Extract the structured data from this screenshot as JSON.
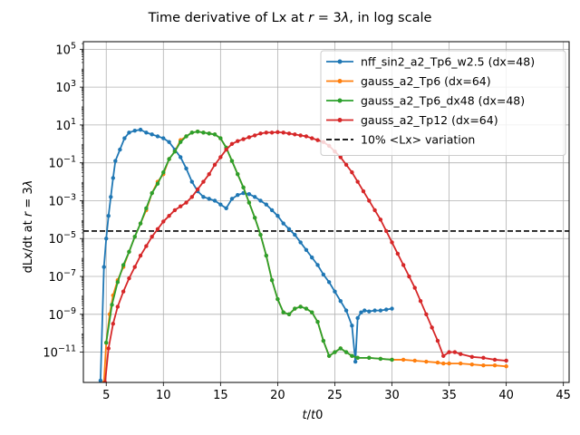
{
  "chart_data": {
    "type": "line",
    "title": "Time derivative of Lx at r = 3λ, in log scale",
    "xlabel": "t/t0",
    "ylabel": "dLx/dt at r = 3λ",
    "xlim": [
      3.0,
      45.5
    ],
    "ylim_log10": [
      -12.6,
      5.4
    ],
    "yscale": "log",
    "grid": true,
    "legend_position": "upper-right",
    "xticks": [
      5,
      10,
      15,
      20,
      25,
      30,
      35,
      40,
      45
    ],
    "yticks_log10": [
      5,
      3,
      1,
      -1,
      -3,
      -5,
      -7,
      -9,
      -11
    ],
    "reference_line": {
      "name": "10% <Lx> variation",
      "y_log10": -4.6,
      "color": "#000000",
      "style": "dashed"
    },
    "series": [
      {
        "name": "nff_sin2_a2_Tp6_w2.5 (dx=48)",
        "color": "#1f77b4",
        "x": [
          4.5,
          4.8,
          5.0,
          5.2,
          5.4,
          5.6,
          5.8,
          6.2,
          6.6,
          7.0,
          7.5,
          8.0,
          8.5,
          9.0,
          9.5,
          10.0,
          10.5,
          11.0,
          11.5,
          12.0,
          12.5,
          13.0,
          13.5,
          14.0,
          14.5,
          15.0,
          15.5,
          16.0,
          16.5,
          17.0,
          17.5,
          18.0,
          18.5,
          19.0,
          19.5,
          20.0,
          20.5,
          21.0,
          21.5,
          22.0,
          22.5,
          23.0,
          23.5,
          24.0,
          24.5,
          25.0,
          25.5,
          26.0,
          26.5,
          26.8,
          27.0,
          27.3,
          27.6,
          28.0,
          28.5,
          29.0,
          29.5,
          30.0
        ],
        "y_log10": [
          -12.5,
          -6.5,
          -5.0,
          -3.8,
          -2.8,
          -1.8,
          -0.9,
          -0.3,
          0.3,
          0.6,
          0.7,
          0.75,
          0.6,
          0.5,
          0.4,
          0.3,
          0.1,
          -0.3,
          -0.7,
          -1.3,
          -2.0,
          -2.5,
          -2.8,
          -2.9,
          -3.0,
          -3.2,
          -3.4,
          -2.9,
          -2.7,
          -2.6,
          -2.65,
          -2.8,
          -3.0,
          -3.2,
          -3.5,
          -3.8,
          -4.2,
          -4.5,
          -4.8,
          -5.2,
          -5.6,
          -6.0,
          -6.4,
          -6.9,
          -7.3,
          -7.8,
          -8.3,
          -8.8,
          -9.6,
          -11.5,
          -9.2,
          -8.9,
          -8.8,
          -8.85,
          -8.8,
          -8.8,
          -8.75,
          -8.7
        ]
      },
      {
        "name": "gauss_a2_Tp6 (dx=64)",
        "color": "#ff7f0e",
        "x": [
          4.8,
          5.0,
          5.3,
          5.6,
          6.0,
          6.5,
          7.0,
          7.5,
          8.0,
          8.5,
          9.0,
          9.5,
          10.0,
          10.5,
          11.0,
          11.5,
          12.0,
          12.5,
          13.0,
          13.5,
          14.0,
          14.5,
          15.0,
          15.5,
          16.0,
          16.5,
          17.0,
          17.5,
          18.0,
          18.5,
          19.0,
          19.5,
          20.0,
          20.5,
          21.0,
          21.5,
          22.0,
          22.5,
          23.0,
          23.5,
          24.0,
          24.5,
          25.0,
          25.5,
          26.0,
          26.5,
          27.0,
          28.0,
          29.0,
          30.0,
          31.0,
          32.0,
          33.0,
          34.0,
          34.5,
          35.0,
          36.0,
          37.0,
          38.0,
          39.0,
          40.0
        ],
        "y_log10": [
          -12.6,
          -10.5,
          -9.0,
          -8.0,
          -7.2,
          -6.5,
          -5.7,
          -4.9,
          -4.2,
          -3.5,
          -2.6,
          -2.0,
          -1.6,
          -0.8,
          -0.4,
          0.2,
          0.4,
          0.6,
          0.65,
          0.6,
          0.55,
          0.5,
          0.3,
          -0.2,
          -0.9,
          -1.6,
          -2.3,
          -3.1,
          -3.9,
          -4.8,
          -5.9,
          -7.2,
          -8.2,
          -8.9,
          -9.0,
          -8.7,
          -8.6,
          -8.7,
          -8.9,
          -9.4,
          -10.4,
          -11.2,
          -11.0,
          -10.8,
          -11.0,
          -11.2,
          -11.3,
          -11.3,
          -11.35,
          -11.4,
          -11.4,
          -11.45,
          -11.5,
          -11.55,
          -11.6,
          -11.6,
          -11.6,
          -11.65,
          -11.7,
          -11.7,
          -11.75
        ]
      },
      {
        "name": "gauss_a2_Tp6_dx48 (dx=48)",
        "color": "#2ca02c",
        "x": [
          5.0,
          5.5,
          6.0,
          6.5,
          7.0,
          7.5,
          8.0,
          8.5,
          9.0,
          9.5,
          10.0,
          10.5,
          11.0,
          11.5,
          12.0,
          12.5,
          13.0,
          13.5,
          14.0,
          14.5,
          15.0,
          15.5,
          16.0,
          16.5,
          17.0,
          17.5,
          18.0,
          18.5,
          19.0,
          19.5,
          20.0,
          20.5,
          21.0,
          21.5,
          22.0,
          22.5,
          23.0,
          23.5,
          24.0,
          24.5,
          25.0,
          25.5,
          26.0,
          26.5,
          27.0,
          28.0,
          29.0,
          30.0
        ],
        "y_log10": [
          -10.5,
          -8.5,
          -7.3,
          -6.4,
          -5.7,
          -4.9,
          -4.2,
          -3.4,
          -2.6,
          -2.1,
          -1.5,
          -0.8,
          -0.4,
          0.1,
          0.4,
          0.6,
          0.65,
          0.6,
          0.55,
          0.5,
          0.3,
          -0.2,
          -0.9,
          -1.6,
          -2.3,
          -3.1,
          -3.9,
          -4.8,
          -5.9,
          -7.2,
          -8.2,
          -8.9,
          -9.0,
          -8.7,
          -8.6,
          -8.7,
          -8.9,
          -9.4,
          -10.4,
          -11.2,
          -11.0,
          -10.8,
          -11.0,
          -11.2,
          -11.3,
          -11.3,
          -11.35,
          -11.4
        ]
      },
      {
        "name": "gauss_a2_Tp12 (dx=64)",
        "color": "#d62728",
        "x": [
          4.9,
          5.2,
          5.6,
          6.0,
          6.5,
          7.0,
          7.5,
          8.0,
          8.5,
          9.0,
          9.5,
          10.0,
          10.5,
          11.0,
          11.5,
          12.0,
          12.5,
          13.0,
          13.5,
          14.0,
          14.5,
          15.0,
          15.5,
          16.0,
          16.5,
          17.0,
          17.5,
          18.0,
          18.5,
          19.0,
          19.5,
          20.0,
          20.5,
          21.0,
          21.5,
          22.0,
          22.5,
          23.0,
          23.5,
          24.0,
          24.5,
          25.0,
          25.5,
          26.0,
          26.5,
          27.0,
          27.5,
          28.0,
          28.5,
          29.0,
          29.5,
          30.0,
          30.5,
          31.0,
          31.5,
          32.0,
          32.5,
          33.0,
          33.5,
          34.0,
          34.5,
          35.0,
          35.5,
          36.0,
          37.0,
          38.0,
          39.0,
          40.0
        ],
        "y_log10": [
          -12.6,
          -10.8,
          -9.5,
          -8.6,
          -7.8,
          -7.1,
          -6.5,
          -5.9,
          -5.4,
          -4.9,
          -4.5,
          -4.1,
          -3.8,
          -3.5,
          -3.3,
          -3.1,
          -2.8,
          -2.4,
          -2.0,
          -1.6,
          -1.1,
          -0.7,
          -0.3,
          0.0,
          0.15,
          0.25,
          0.35,
          0.45,
          0.55,
          0.6,
          0.6,
          0.62,
          0.6,
          0.55,
          0.5,
          0.45,
          0.4,
          0.3,
          0.2,
          0.1,
          -0.1,
          -0.4,
          -0.7,
          -1.1,
          -1.5,
          -2.0,
          -2.5,
          -3.0,
          -3.5,
          -4.0,
          -4.6,
          -5.2,
          -5.8,
          -6.4,
          -7.0,
          -7.6,
          -8.3,
          -9.0,
          -9.7,
          -10.4,
          -11.2,
          -11.0,
          -11.0,
          -11.1,
          -11.25,
          -11.3,
          -11.4,
          -11.45
        ]
      }
    ]
  }
}
